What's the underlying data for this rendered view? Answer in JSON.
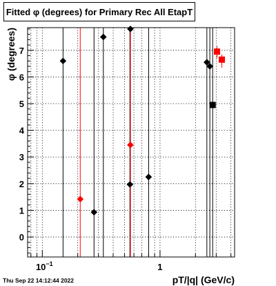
{
  "title": "Fitted φ (degrees) for Primary Rec All EtapT",
  "footer": "Thu Sep 22 14:12:44 2022",
  "chart_data": {
    "type": "scatter",
    "title": "Fitted φ (degrees) for Primary Rec All EtapT",
    "xlabel": "pT/|q| (GeV/c)",
    "ylabel": "φ (degrees)",
    "xscale": "log",
    "xlim": [
      0.075,
      4.3
    ],
    "ylim": [
      -0.75,
      7.85
    ],
    "grid": true,
    "xticks": [
      {
        "value": 0.1,
        "base": "10",
        "exp": "−1"
      },
      {
        "value": 1,
        "base": "1",
        "exp": ""
      }
    ],
    "yticks": [
      0,
      1,
      2,
      3,
      4,
      5,
      6,
      7
    ],
    "series": [
      {
        "color": "#000000",
        "marker": "diamond",
        "points": [
          {
            "x": 0.15,
            "y": 6.6,
            "ylo": -0.75,
            "yhi": 7.85
          },
          {
            "x": 0.275,
            "y": 0.93,
            "ylo": -0.75,
            "yhi": 7.85
          },
          {
            "x": 0.33,
            "y": 7.5,
            "ylo": -0.75,
            "yhi": 7.85
          },
          {
            "x": 0.56,
            "y": 7.8,
            "ylo": -0.75,
            "yhi": 7.85
          },
          {
            "x": 0.555,
            "y": 1.97,
            "ylo": -0.75,
            "yhi": 7.85
          },
          {
            "x": 0.8,
            "y": 2.25,
            "ylo": -0.75,
            "yhi": 7.85
          },
          {
            "x": 2.5,
            "y": 6.55,
            "ylo": -0.75,
            "yhi": 7.85
          },
          {
            "x": 2.65,
            "y": 6.4,
            "ylo": -0.75,
            "yhi": 7.85
          }
        ]
      },
      {
        "color": "#000000",
        "marker": "square",
        "points": [
          {
            "x": 2.8,
            "y": 4.95,
            "ylo": -0.75,
            "yhi": 7.85
          }
        ]
      },
      {
        "color": "#ff0000",
        "marker": "diamond",
        "points": [
          {
            "x": 0.21,
            "y": 1.42,
            "ylo": -0.75,
            "yhi": 7.85
          },
          {
            "x": 0.56,
            "y": 3.45,
            "ylo": -0.75,
            "yhi": 7.85
          }
        ]
      },
      {
        "color": "#ff0000",
        "marker": "square",
        "points": [
          {
            "x": 3.05,
            "y": 6.95,
            "ylo": 6.7,
            "yhi": 7.15
          },
          {
            "x": 3.35,
            "y": 6.65,
            "ylo": 6.35,
            "yhi": 6.85
          }
        ]
      }
    ]
  }
}
